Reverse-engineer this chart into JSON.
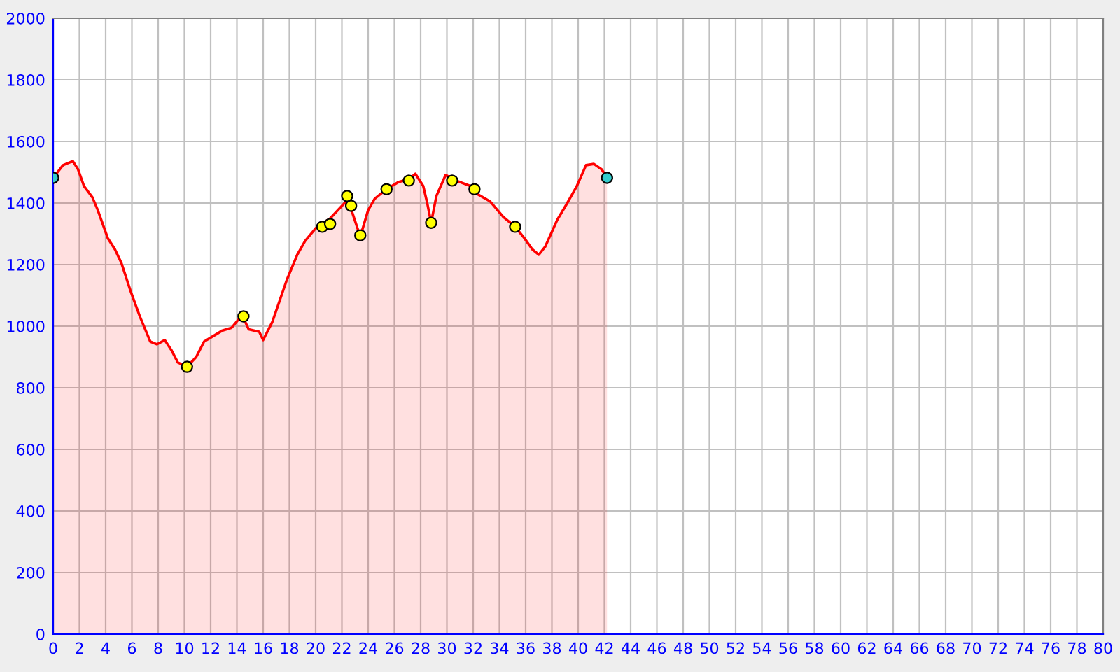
{
  "chart_data": {
    "type": "area",
    "series": [
      {
        "color": "#ff0000",
        "x": [
          0,
          0.75,
          1.5,
          1.9,
          2.35,
          3,
          3.4,
          4.16,
          4.7,
          5.2,
          5.9,
          6.6,
          7.4,
          7.9,
          8.5,
          9,
          9.5,
          10.2,
          10.9,
          11.5,
          12.2,
          12.9,
          13.6,
          14.4,
          14.9,
          15.7,
          16,
          16.7,
          17.8,
          18.6,
          19.2,
          20,
          21.1,
          22.2,
          22.4,
          22.8,
          23.4,
          24,
          24.5,
          25.4,
          26.3,
          27.1,
          27.6,
          28.2,
          28.5,
          28.8,
          29.2,
          29.9,
          30.7,
          31.8,
          32.2,
          33.3,
          34.3,
          35.2,
          35.9,
          36.5,
          37,
          37.5,
          38.4,
          39.1,
          39.9,
          40.6,
          41.2,
          41.8,
          42.2
        ],
        "values": [
          1482,
          1523,
          1536,
          1509,
          1455,
          1418,
          1377,
          1286,
          1250,
          1205,
          1114,
          1032,
          950,
          941,
          955,
          923,
          882,
          868,
          900,
          950,
          968,
          986,
          995,
          1036,
          990,
          982,
          955,
          1014,
          1150,
          1232,
          1277,
          1318,
          1350,
          1400,
          1432,
          1368,
          1291,
          1377,
          1414,
          1445,
          1468,
          1477,
          1495,
          1455,
          1400,
          1336,
          1423,
          1491,
          1473,
          1455,
          1432,
          1405,
          1355,
          1323,
          1286,
          1250,
          1232,
          1259,
          1345,
          1395,
          1455,
          1523,
          1527,
          1509,
          1482
        ]
      },
      {
        "type": "scatter",
        "color": "#ffff00",
        "marker": "circle",
        "x": [
          10.2,
          14.5,
          20.5,
          21.1,
          22.4,
          22.7,
          23.4,
          25.4,
          27.1,
          28.8,
          30.4,
          32.1,
          35.2
        ],
        "values": [
          868,
          1032,
          1323,
          1332,
          1423,
          1391,
          1295,
          1445,
          1473,
          1336,
          1473,
          1445,
          1323
        ]
      },
      {
        "type": "scatter",
        "color": "#33cccc",
        "marker": "circle",
        "x": [
          0,
          42.2
        ],
        "values": [
          1482,
          1482
        ]
      }
    ],
    "xlim": [
      0,
      80
    ],
    "xticks": [
      0,
      2,
      4,
      6,
      8,
      10,
      12,
      14,
      16,
      18,
      20,
      22,
      24,
      26,
      28,
      30,
      32,
      34,
      36,
      38,
      40,
      42,
      44,
      46,
      48,
      50,
      52,
      54,
      56,
      58,
      60,
      62,
      64,
      66,
      68,
      70,
      72,
      74,
      76,
      78,
      80
    ],
    "ylim": [
      0,
      2000
    ],
    "yticks": [
      0,
      200,
      400,
      600,
      800,
      1000,
      1200,
      1400,
      1600,
      1800,
      2000
    ],
    "grid": true,
    "legend": false
  }
}
